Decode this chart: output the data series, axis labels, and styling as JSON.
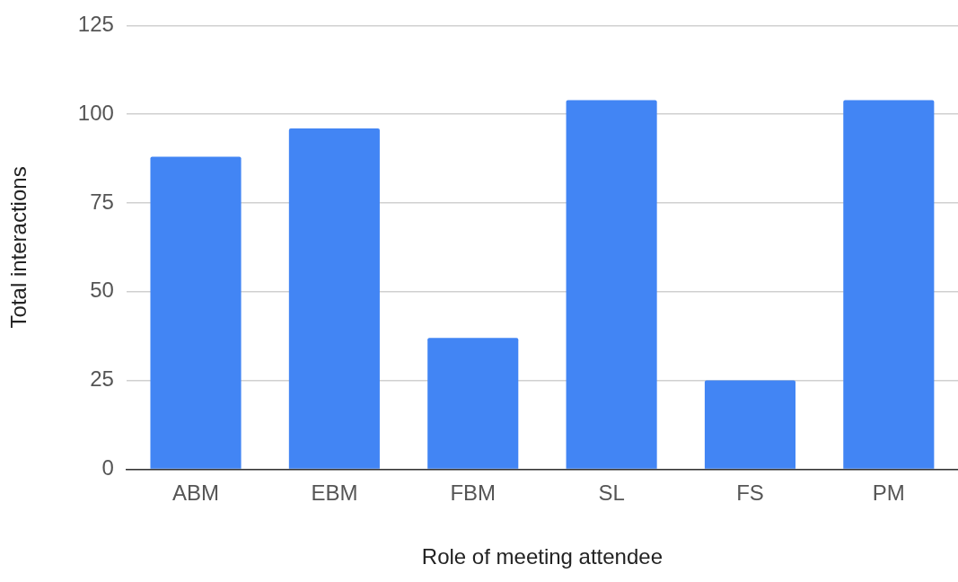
{
  "chart_data": {
    "type": "bar",
    "xlabel": "Role of meeting attendee",
    "ylabel": "Total interactions",
    "categories": [
      "ABM",
      "EBM",
      "FBM",
      "SL",
      "FS",
      "PM"
    ],
    "values": [
      88,
      96,
      37,
      104,
      25,
      104
    ],
    "color": "#4285f4",
    "ylim": [
      0,
      125
    ],
    "yticks": [
      0,
      25,
      50,
      75,
      100,
      125
    ],
    "grid": "y",
    "legend": false
  }
}
